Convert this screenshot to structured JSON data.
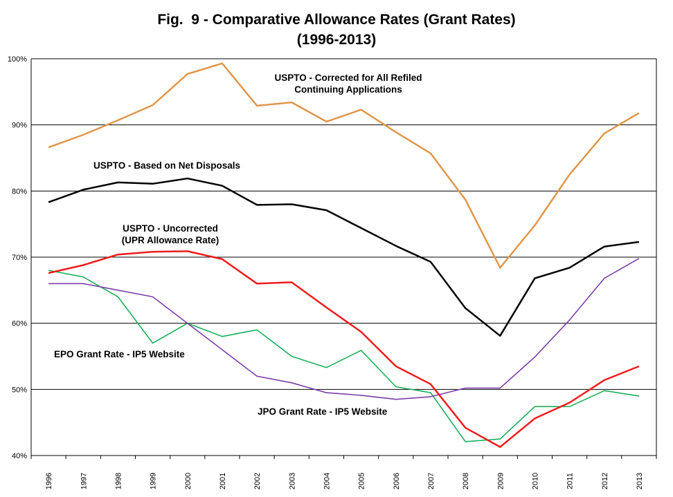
{
  "chart_data": {
    "type": "line",
    "title": "Fig.  9 - Comparative Allowance Rates (Grant Rates)",
    "subtitle": "(1996-2013)",
    "xlabel": "",
    "ylabel": "",
    "x": [
      "1996",
      "1997",
      "1998",
      "1999",
      "2000",
      "2001",
      "2002",
      "2003",
      "2004",
      "2005",
      "2006",
      "2007",
      "2008",
      "2009",
      "2010",
      "2011",
      "2012",
      "2013"
    ],
    "ylim": [
      40,
      100
    ],
    "yticks": [
      40,
      50,
      60,
      70,
      80,
      90,
      100
    ],
    "ytick_labels": [
      "40%",
      "50%",
      "60%",
      "70%",
      "80%",
      "90%",
      "100%"
    ],
    "grid": "horizontal",
    "series": [
      {
        "name": "USPTO - Corrected for All Refiled Continuing Applications",
        "color": "#e0964a",
        "values": [
          86.6,
          88.5,
          90.7,
          93.0,
          97.7,
          99.3,
          92.9,
          93.4,
          90.5,
          92.3,
          88.9,
          85.7,
          78.7,
          68.4,
          74.8,
          82.5,
          88.7,
          91.8
        ]
      },
      {
        "name": "USPTO - Based on Net Disposals",
        "color": "#000000",
        "values": [
          78.3,
          80.2,
          81.3,
          81.1,
          81.9,
          80.8,
          77.9,
          78.0,
          77.1,
          74.4,
          71.7,
          69.3,
          62.3,
          58.1,
          66.8,
          68.4,
          71.6,
          72.3
        ]
      },
      {
        "name": "USPTO - Uncorrected (UPR Allowance Rate)",
        "color": "#ee1c1c",
        "values": [
          67.6,
          68.8,
          70.4,
          70.8,
          70.9,
          69.7,
          66.0,
          66.2,
          62.4,
          58.7,
          53.5,
          50.8,
          44.2,
          41.3,
          45.6,
          48.0,
          51.4,
          53.5
        ]
      },
      {
        "name": "EPO Grant Rate - IP5 Website",
        "color": "#19b05a",
        "values": [
          68.0,
          67.0,
          64.0,
          57.0,
          60.0,
          58.0,
          59.0,
          55.0,
          53.3,
          55.9,
          50.4,
          49.5,
          42.1,
          42.5,
          47.4,
          47.4,
          49.8,
          49.0
        ]
      },
      {
        "name": "JPO Grant Rate - IP5 Website",
        "color": "#7b3fa8",
        "values": [
          66.0,
          66.0,
          65.0,
          64.0,
          60.0,
          56.0,
          52.0,
          51.0,
          49.5,
          49.1,
          48.5,
          48.9,
          50.2,
          50.2,
          54.9,
          60.5,
          66.8,
          69.8
        ]
      }
    ],
    "annotations": [
      {
        "lines": [
          "USPTO - Corrected for All Refiled",
          "Continuing Applications"
        ]
      },
      {
        "lines": [
          "USPTO - Based on Net Disposals"
        ]
      },
      {
        "lines": [
          "USPTO - Uncorrected",
          "(UPR Allowance Rate)"
        ]
      },
      {
        "lines": [
          "EPO Grant Rate - IP5 Website"
        ]
      },
      {
        "lines": [
          "JPO Grant Rate - IP5 Website"
        ]
      }
    ]
  }
}
